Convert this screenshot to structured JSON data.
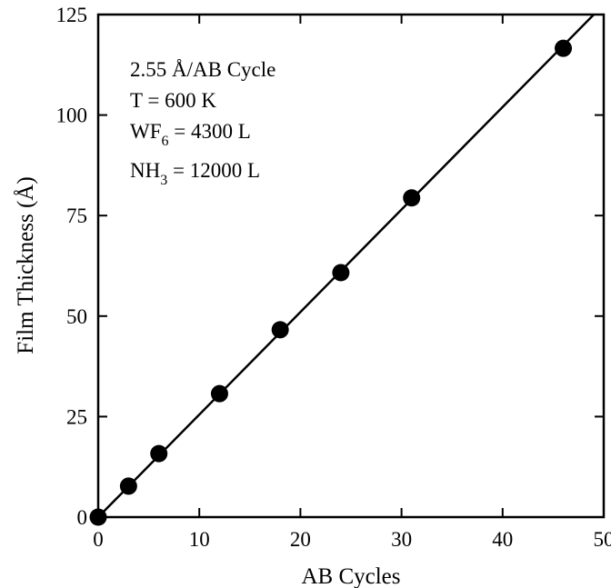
{
  "chart_data": {
    "type": "scatter",
    "xlabel": "AB Cycles",
    "ylabel": "Film Thickness (Å)",
    "xlim": [
      0,
      50
    ],
    "ylim": [
      0,
      125
    ],
    "x_ticks": [
      0,
      10,
      20,
      30,
      40,
      50
    ],
    "y_ticks": [
      0,
      25,
      50,
      75,
      100,
      125
    ],
    "x_tick_labels": [
      "0",
      "10",
      "20",
      "30",
      "40",
      "50"
    ],
    "y_tick_labels": [
      "0",
      "25",
      "50",
      "75",
      "100",
      "125"
    ],
    "grid": false,
    "points": [
      {
        "x": 0,
        "y": 0
      },
      {
        "x": 3,
        "y": 7.7
      },
      {
        "x": 6,
        "y": 15.8
      },
      {
        "x": 12,
        "y": 30.7
      },
      {
        "x": 18,
        "y": 46.6
      },
      {
        "x": 24,
        "y": 60.8
      },
      {
        "x": 31,
        "y": 79.4
      },
      {
        "x": 46,
        "y": 116.6
      }
    ],
    "fit_line": {
      "slope": 2.55,
      "intercept": 0,
      "x_range": [
        0,
        50
      ]
    },
    "annotations": {
      "rate": "2.55 Å/AB Cycle",
      "temp": "T = 600 K",
      "wf6_pre": "WF",
      "wf6_sub": "6",
      "wf6_post": " = 4300 L",
      "nh3_pre": "NH",
      "nh3_sub": "3",
      "nh3_post": " = 12000 L"
    },
    "colors": {
      "marker": "#000000",
      "line": "#000000",
      "axis": "#000000"
    }
  }
}
